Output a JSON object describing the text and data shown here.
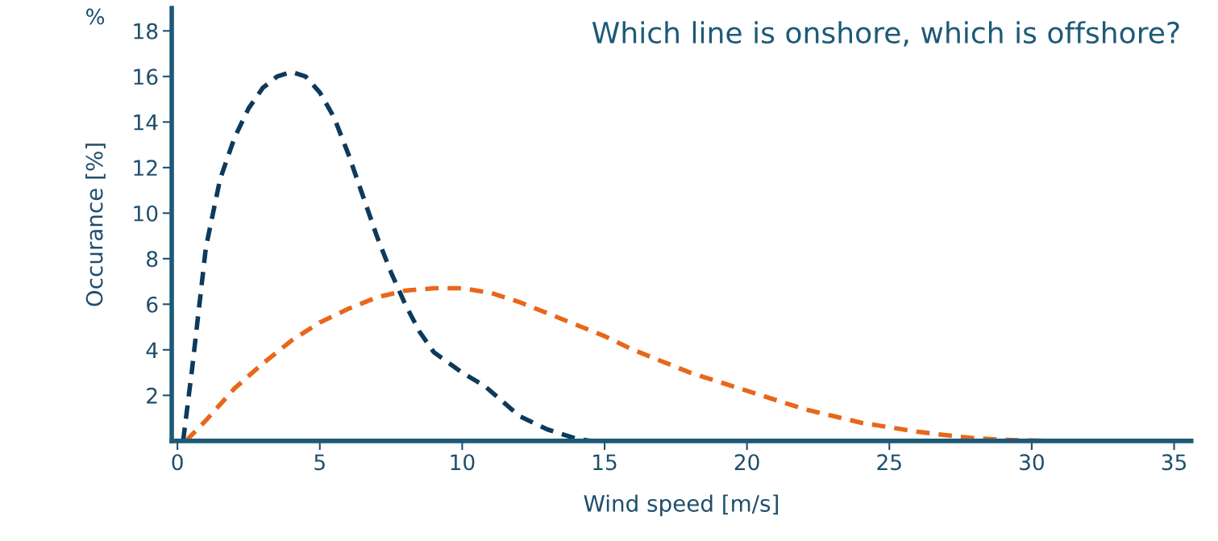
{
  "chart_data": {
    "type": "line",
    "title": "Which line is onshore, which is offshore?",
    "xlabel": "Wind speed [m/s]",
    "ylabel": "Occurance [%]",
    "annotations": [
      "%"
    ],
    "xlim": [
      -0.2,
      35.6
    ],
    "ylim": [
      0,
      19
    ],
    "xticks": [
      0,
      5,
      10,
      15,
      20,
      25,
      30,
      35
    ],
    "yticks": [
      2,
      4,
      6,
      8,
      10,
      12,
      14,
      16,
      18
    ],
    "grid": false,
    "legend": false,
    "marker": "none",
    "line_style": "dashed",
    "series": [
      {
        "color": "#0d3a5c",
        "x": [
          0.2,
          0.5,
          1,
          1.5,
          2,
          2.5,
          3,
          3.5,
          4,
          4.5,
          5,
          5.5,
          6,
          6.5,
          7,
          7.5,
          8,
          8.5,
          9,
          10,
          10.8,
          12,
          13,
          14,
          14.5
        ],
        "values": [
          0,
          3,
          8.5,
          11.5,
          13.3,
          14.6,
          15.5,
          16,
          16.2,
          16,
          15.3,
          14.2,
          12.6,
          10.8,
          9,
          7.4,
          6,
          4.8,
          3.9,
          3,
          2.4,
          1.1,
          0.5,
          0.1,
          0
        ]
      },
      {
        "color": "#e8671a",
        "x": [
          0.3,
          1,
          2,
          3,
          4,
          5,
          6,
          7,
          8,
          9,
          10,
          11,
          12,
          13,
          14,
          15,
          16,
          17,
          18,
          19,
          20,
          21,
          22,
          23,
          24,
          25,
          26,
          27,
          28,
          29,
          30,
          31
        ],
        "values": [
          0,
          0.9,
          2.3,
          3.4,
          4.4,
          5.2,
          5.8,
          6.3,
          6.6,
          6.7,
          6.7,
          6.5,
          6.1,
          5.6,
          5.1,
          4.6,
          4.0,
          3.5,
          3.0,
          2.6,
          2.2,
          1.8,
          1.4,
          1.1,
          0.8,
          0.6,
          0.4,
          0.25,
          0.12,
          0.05,
          0.02,
          0
        ]
      }
    ]
  }
}
